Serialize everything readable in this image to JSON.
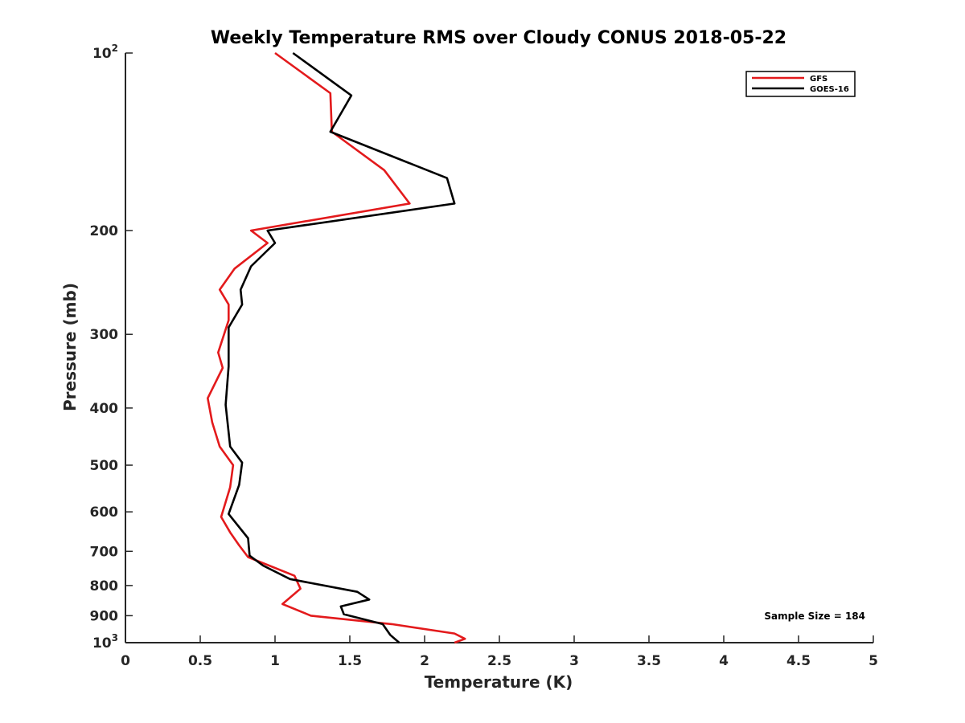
{
  "chart_data": {
    "type": "line",
    "title": "Weekly Temperature RMS over Cloudy CONUS 2018-05-22",
    "xlabel": "Temperature (K)",
    "ylabel": "Pressure (mb)",
    "xlim": [
      0,
      5
    ],
    "ylim": [
      1000,
      100
    ],
    "yscale": "log",
    "y_reversed": true,
    "grid": false,
    "legend_position": "top-right",
    "x_ticks": [
      "0",
      "0.5",
      "1",
      "1.5",
      "2",
      "2.5",
      "3",
      "3.5",
      "4",
      "4.5",
      "5"
    ],
    "x_tick_values": [
      0,
      0.5,
      1,
      1.5,
      2,
      2.5,
      3,
      3.5,
      4,
      4.5,
      5
    ],
    "y_ticks": [
      {
        "value": 100,
        "label": "10",
        "sup": "2"
      },
      {
        "value": 200,
        "label": "200",
        "sup": ""
      },
      {
        "value": 300,
        "label": "300",
        "sup": ""
      },
      {
        "value": 400,
        "label": "400",
        "sup": ""
      },
      {
        "value": 500,
        "label": "500",
        "sup": ""
      },
      {
        "value": 600,
        "label": "600",
        "sup": ""
      },
      {
        "value": 700,
        "label": "700",
        "sup": ""
      },
      {
        "value": 800,
        "label": "800",
        "sup": ""
      },
      {
        "value": 900,
        "label": "900",
        "sup": ""
      },
      {
        "value": 1000,
        "label": "10",
        "sup": "3"
      }
    ],
    "series": [
      {
        "name": "GFS",
        "color": "#e31a1c",
        "points": [
          [
            1.0,
            100
          ],
          [
            1.37,
            117
          ],
          [
            1.38,
            136
          ],
          [
            1.73,
            158
          ],
          [
            1.9,
            180
          ],
          [
            0.84,
            200
          ],
          [
            0.95,
            210
          ],
          [
            0.73,
            232
          ],
          [
            0.63,
            252
          ],
          [
            0.69,
            267
          ],
          [
            0.69,
            284
          ],
          [
            0.62,
            322
          ],
          [
            0.65,
            342
          ],
          [
            0.55,
            385
          ],
          [
            0.58,
            423
          ],
          [
            0.63,
            465
          ],
          [
            0.72,
            500
          ],
          [
            0.7,
            545
          ],
          [
            0.64,
            612
          ],
          [
            0.7,
            650
          ],
          [
            0.76,
            684
          ],
          [
            0.82,
            716
          ],
          [
            1.13,
            770
          ],
          [
            1.17,
            810
          ],
          [
            1.05,
            860
          ],
          [
            1.24,
            900
          ],
          [
            1.78,
            930
          ],
          [
            2.2,
            965
          ],
          [
            2.27,
            985
          ],
          [
            2.2,
            1000
          ]
        ]
      },
      {
        "name": "GOES-16",
        "color": "#000000",
        "points": [
          [
            1.12,
            100
          ],
          [
            1.51,
            118
          ],
          [
            1.37,
            136
          ],
          [
            2.15,
            163
          ],
          [
            2.2,
            180
          ],
          [
            0.95,
            200
          ],
          [
            1.0,
            210
          ],
          [
            0.84,
            230
          ],
          [
            0.77,
            252
          ],
          [
            0.78,
            267
          ],
          [
            0.69,
            292
          ],
          [
            0.69,
            340
          ],
          [
            0.67,
            395
          ],
          [
            0.7,
            465
          ],
          [
            0.78,
            495
          ],
          [
            0.76,
            540
          ],
          [
            0.69,
            605
          ],
          [
            0.82,
            665
          ],
          [
            0.83,
            712
          ],
          [
            0.92,
            740
          ],
          [
            1.1,
            780
          ],
          [
            1.55,
            820
          ],
          [
            1.63,
            845
          ],
          [
            1.44,
            868
          ],
          [
            1.46,
            895
          ],
          [
            1.72,
            930
          ],
          [
            1.77,
            970
          ],
          [
            1.83,
            1000
          ]
        ]
      }
    ],
    "legend": [
      "GFS",
      "GOES-16"
    ],
    "annotation": "Sample Size = 184"
  }
}
